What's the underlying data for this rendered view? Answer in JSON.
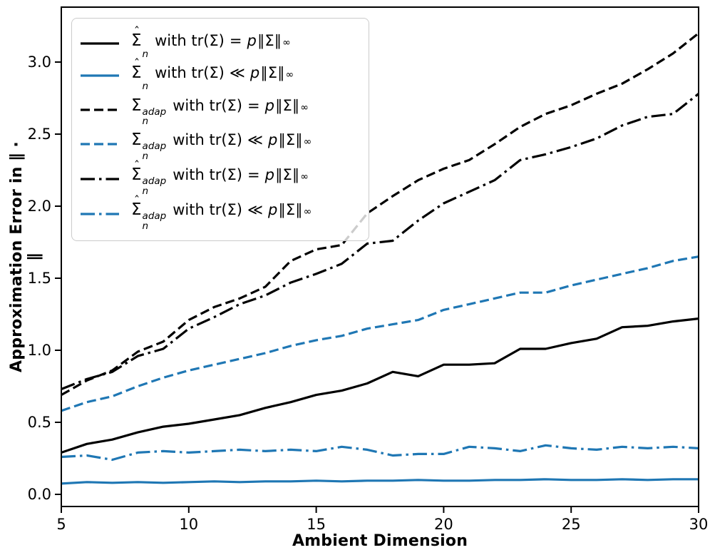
{
  "figure": {
    "background": "#ffffff"
  },
  "colors": {
    "black": "#000000",
    "blue": "#1f77b4",
    "legend_border": "#cbcbcb",
    "legend_background": "rgba(255,255,255,0.8)"
  },
  "axes": {
    "xtick_values": [
      5,
      10,
      15,
      20,
      25,
      30
    ],
    "xtick_labels": [
      "5",
      "10",
      "15",
      "20",
      "25",
      "30"
    ],
    "ytick_values": [
      0.0,
      0.5,
      1.0,
      1.5,
      2.0,
      2.5,
      3.0
    ],
    "ytick_labels": [
      "0.0",
      "0.5",
      "1.0",
      "1.5",
      "2.0",
      "2.5",
      "3.0"
    ]
  },
  "chart_data": {
    "type": "line",
    "title": "",
    "xlabel": "Ambient Dimension",
    "ylabel": "Approximation Error in ∥ · ∥",
    "xlim": [
      5,
      30
    ],
    "ylim": [
      -0.08,
      3.38
    ],
    "grid": false,
    "legend_position": "upper left",
    "x": [
      5,
      6,
      7,
      8,
      9,
      10,
      11,
      12,
      13,
      14,
      15,
      16,
      17,
      18,
      19,
      20,
      21,
      22,
      23,
      24,
      25,
      26,
      27,
      28,
      29,
      30
    ],
    "series": [
      {
        "name": "Σ̂_n with tr(Σ) = p∥Σ∥_∞",
        "style": "solid",
        "color": "#000000",
        "values": [
          0.29,
          0.35,
          0.38,
          0.43,
          0.47,
          0.49,
          0.52,
          0.55,
          0.6,
          0.64,
          0.69,
          0.72,
          0.77,
          0.85,
          0.82,
          0.9,
          0.9,
          0.91,
          1.01,
          1.01,
          1.05,
          1.08,
          1.16,
          1.17,
          1.2,
          1.22
        ]
      },
      {
        "name": "Σ̂_n with tr(Σ) ≪ p∥Σ∥_∞",
        "style": "solid",
        "color": "#1f77b4",
        "values": [
          0.075,
          0.085,
          0.08,
          0.085,
          0.08,
          0.085,
          0.09,
          0.085,
          0.09,
          0.09,
          0.095,
          0.09,
          0.095,
          0.095,
          0.1,
          0.095,
          0.095,
          0.1,
          0.1,
          0.105,
          0.1,
          0.1,
          0.105,
          0.1,
          0.105,
          0.105
        ]
      },
      {
        "name": "Σ_n^adap with tr(Σ) = p∥Σ∥_∞",
        "style": "dashed",
        "color": "#000000",
        "values": [
          0.69,
          0.79,
          0.86,
          0.99,
          1.06,
          1.21,
          1.3,
          1.36,
          1.44,
          1.62,
          1.7,
          1.73,
          1.95,
          2.07,
          2.18,
          2.26,
          2.32,
          2.43,
          2.55,
          2.64,
          2.7,
          2.78,
          2.85,
          2.95,
          3.06,
          3.2
        ]
      },
      {
        "name": "Σ_n^adap with tr(Σ) ≪ p∥Σ∥_∞",
        "style": "dashed",
        "color": "#1f77b4",
        "values": [
          0.58,
          0.64,
          0.68,
          0.75,
          0.81,
          0.86,
          0.9,
          0.94,
          0.98,
          1.03,
          1.07,
          1.1,
          1.15,
          1.18,
          1.21,
          1.28,
          1.32,
          1.36,
          1.4,
          1.4,
          1.45,
          1.49,
          1.53,
          1.57,
          1.62,
          1.65
        ]
      },
      {
        "name": "Σ̂_n^adap with tr(Σ) = p∥Σ∥_∞",
        "style": "dashdot",
        "color": "#000000",
        "values": [
          0.73,
          0.8,
          0.85,
          0.96,
          1.01,
          1.15,
          1.23,
          1.32,
          1.38,
          1.47,
          1.53,
          1.6,
          1.74,
          1.76,
          1.9,
          2.02,
          2.1,
          2.18,
          2.32,
          2.36,
          2.41,
          2.47,
          2.56,
          2.62,
          2.64,
          2.78
        ]
      },
      {
        "name": "Σ̂_n^adap with tr(Σ) ≪ p∥Σ∥_∞",
        "style": "dashdot",
        "color": "#1f77b4",
        "values": [
          0.26,
          0.27,
          0.24,
          0.29,
          0.3,
          0.29,
          0.3,
          0.31,
          0.3,
          0.31,
          0.3,
          0.33,
          0.31,
          0.27,
          0.28,
          0.28,
          0.33,
          0.32,
          0.3,
          0.34,
          0.32,
          0.31,
          0.33,
          0.32,
          0.33,
          0.32
        ]
      }
    ]
  },
  "legend": {
    "shared": {
      "sigma": "Σ",
      "hat": "ˆ",
      "with_text": "with tr(Σ)",
      "p_text": "p",
      "norm_text": "∥Σ∥",
      "inf_text": "∞"
    },
    "items": [
      {
        "hat": true,
        "sub": "n",
        "sup": "",
        "rel": "=",
        "style": "solid",
        "color": "#000000"
      },
      {
        "hat": true,
        "sub": "n",
        "sup": "",
        "rel": "≪",
        "style": "solid",
        "color": "#1f77b4"
      },
      {
        "hat": false,
        "sub": "n",
        "sup": "adap",
        "rel": "=",
        "style": "dashed",
        "color": "#000000"
      },
      {
        "hat": false,
        "sub": "n",
        "sup": "adap",
        "rel": "≪",
        "style": "dashed",
        "color": "#1f77b4"
      },
      {
        "hat": true,
        "sub": "n",
        "sup": "adap",
        "rel": "=",
        "style": "dashdot",
        "color": "#000000"
      },
      {
        "hat": true,
        "sub": "n",
        "sup": "adap",
        "rel": "≪",
        "style": "dashdot",
        "color": "#1f77b4"
      }
    ]
  }
}
